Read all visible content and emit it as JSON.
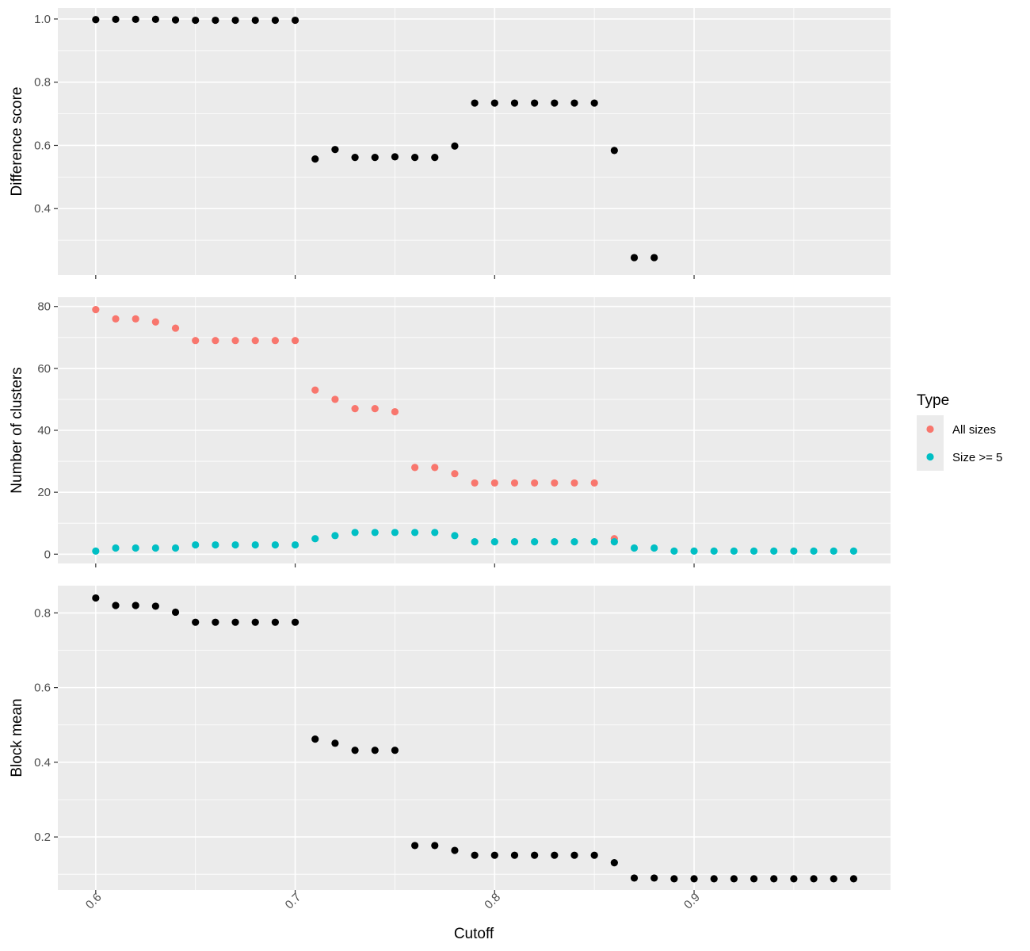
{
  "chart_data": [
    {
      "type": "scatter",
      "ylabel": "Difference score",
      "xlim": [
        0.581,
        0.9985
      ],
      "ylim": [
        0.19,
        1.035
      ],
      "y_ticks": [
        0.4,
        0.6,
        0.8,
        1.0
      ],
      "y_tick_labels": [
        "0.4",
        "0.6",
        "0.8",
        "1.0"
      ],
      "grid": true,
      "series": [
        {
          "color": "#000000",
          "x": [
            0.6,
            0.61,
            0.62,
            0.63,
            0.64,
            0.65,
            0.66,
            0.67,
            0.68,
            0.69,
            0.7,
            0.71,
            0.72,
            0.73,
            0.74,
            0.75,
            0.76,
            0.77,
            0.78,
            0.79,
            0.8,
            0.81,
            0.82,
            0.83,
            0.84,
            0.85,
            0.86,
            0.87,
            0.88
          ],
          "y": [
            0.998,
            0.999,
            0.999,
            0.999,
            0.997,
            0.996,
            0.996,
            0.996,
            0.996,
            0.996,
            0.996,
            0.557,
            0.587,
            0.562,
            0.562,
            0.564,
            0.562,
            0.562,
            0.598,
            0.734,
            0.734,
            0.734,
            0.734,
            0.734,
            0.734,
            0.734,
            0.584,
            0.245,
            0.245
          ]
        }
      ]
    },
    {
      "type": "scatter",
      "ylabel": "Number of clusters",
      "xlim": [
        0.581,
        0.9985
      ],
      "ylim": [
        -3,
        83
      ],
      "y_ticks": [
        0,
        20,
        40,
        60,
        80
      ],
      "y_tick_labels": [
        "0",
        "20",
        "40",
        "60",
        "80"
      ],
      "grid": true,
      "legend": {
        "title": "Type",
        "position": "right",
        "entries": [
          {
            "label": "All sizes",
            "color": "#f8766d"
          },
          {
            "label": "Size >= 5",
            "color": "#00bfc4"
          }
        ]
      },
      "series": [
        {
          "name": "All sizes",
          "color": "#f8766d",
          "x": [
            0.6,
            0.61,
            0.62,
            0.63,
            0.64,
            0.65,
            0.66,
            0.67,
            0.68,
            0.69,
            0.7,
            0.71,
            0.72,
            0.73,
            0.74,
            0.75,
            0.76,
            0.77,
            0.78,
            0.79,
            0.8,
            0.81,
            0.82,
            0.83,
            0.84,
            0.85,
            0.86
          ],
          "y": [
            79,
            76,
            76,
            75,
            73,
            69,
            69,
            69,
            69,
            69,
            69,
            53,
            50,
            47,
            47,
            46,
            28,
            28,
            26,
            23,
            23,
            23,
            23,
            23,
            23,
            23,
            5
          ]
        },
        {
          "name": "Size >= 5",
          "color": "#00bfc4",
          "x": [
            0.6,
            0.61,
            0.62,
            0.63,
            0.64,
            0.65,
            0.66,
            0.67,
            0.68,
            0.69,
            0.7,
            0.71,
            0.72,
            0.73,
            0.74,
            0.75,
            0.76,
            0.77,
            0.78,
            0.79,
            0.8,
            0.81,
            0.82,
            0.83,
            0.84,
            0.85,
            0.86,
            0.87,
            0.88,
            0.89,
            0.9,
            0.91,
            0.92,
            0.93,
            0.94,
            0.95,
            0.96,
            0.97,
            0.98
          ],
          "y": [
            1,
            2,
            2,
            2,
            2,
            3,
            3,
            3,
            3,
            3,
            3,
            5,
            6,
            7,
            7,
            7,
            7,
            7,
            6,
            4,
            4,
            4,
            4,
            4,
            4,
            4,
            4,
            2,
            2,
            1,
            1,
            1,
            1,
            1,
            1,
            1,
            1,
            1,
            1
          ]
        }
      ]
    },
    {
      "type": "scatter",
      "ylabel": "Block mean",
      "xlabel": "Cutoff",
      "xlim": [
        0.581,
        0.9985
      ],
      "ylim": [
        0.058,
        0.873
      ],
      "y_ticks": [
        0.2,
        0.4,
        0.6,
        0.8
      ],
      "y_tick_labels": [
        "0.2",
        "0.4",
        "0.6",
        "0.8"
      ],
      "x_ticks": [
        0.6,
        0.7,
        0.8,
        0.9
      ],
      "x_tick_labels": [
        "0.6",
        "0.7",
        "0.8",
        "0.9"
      ],
      "grid": true,
      "series": [
        {
          "color": "#000000",
          "x": [
            0.6,
            0.61,
            0.62,
            0.63,
            0.64,
            0.65,
            0.66,
            0.67,
            0.68,
            0.69,
            0.7,
            0.71,
            0.72,
            0.73,
            0.74,
            0.75,
            0.76,
            0.77,
            0.78,
            0.79,
            0.8,
            0.81,
            0.82,
            0.83,
            0.84,
            0.85,
            0.86,
            0.87,
            0.88,
            0.89,
            0.9,
            0.91,
            0.92,
            0.93,
            0.94,
            0.95,
            0.96,
            0.97,
            0.98
          ],
          "y": [
            0.84,
            0.82,
            0.82,
            0.818,
            0.802,
            0.775,
            0.775,
            0.775,
            0.775,
            0.775,
            0.775,
            0.462,
            0.451,
            0.432,
            0.432,
            0.432,
            0.177,
            0.177,
            0.164,
            0.151,
            0.151,
            0.151,
            0.151,
            0.151,
            0.151,
            0.151,
            0.131,
            0.09,
            0.09,
            0.088,
            0.088,
            0.088,
            0.088,
            0.088,
            0.088,
            0.088,
            0.088,
            0.088,
            0.088
          ]
        }
      ]
    }
  ]
}
